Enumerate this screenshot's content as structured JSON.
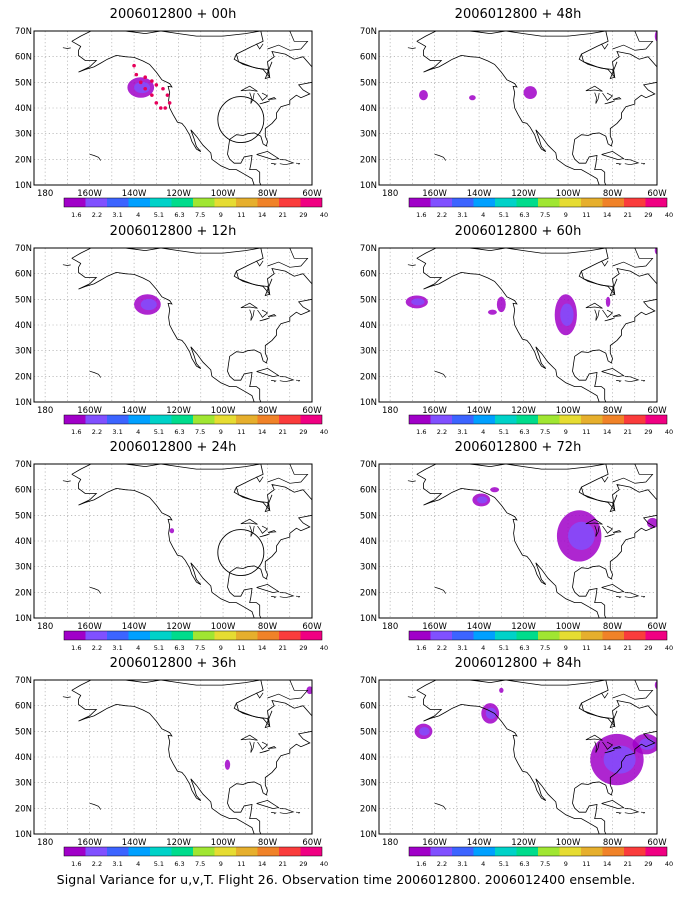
{
  "caption": "Signal Variance for u,v,T. Flight 26. Observation time 2006012800. 2006012400 ensemble.",
  "axes": {
    "lat_labels": [
      "70N",
      "60N",
      "50N",
      "40N",
      "30N",
      "20N",
      "10N"
    ],
    "lon_labels": [
      "180",
      "160W",
      "140W",
      "120W",
      "100W",
      "80W",
      "60W"
    ]
  },
  "colorbar": {
    "colors": [
      "#a000c8",
      "#8050ff",
      "#3c64ff",
      "#00a0ff",
      "#00d2c8",
      "#00dc8c",
      "#a0e632",
      "#e6dc32",
      "#e6af2d",
      "#f08228",
      "#fa3c3c",
      "#f00082"
    ],
    "labels": [
      "1.6",
      "2.2",
      "3.1",
      "4",
      "5.1",
      "6.3",
      "7.5",
      "9",
      "11",
      "14",
      "21",
      "29",
      "40"
    ]
  },
  "panels": [
    {
      "title": "2006012800 + 00h",
      "circle": true,
      "track": true,
      "blobs": [
        {
          "lon": -137,
          "lat": 48,
          "rx": 6,
          "ry": 4
        }
      ]
    },
    {
      "title": "2006012800 + 48h",
      "circle": false,
      "track": false,
      "blobs": [
        {
          "lon": -165,
          "lat": 45,
          "rx": 2,
          "ry": 2
        },
        {
          "lon": -143,
          "lat": 44,
          "rx": 1.5,
          "ry": 1
        },
        {
          "lon": -117,
          "lat": 46,
          "rx": 3,
          "ry": 2.5
        },
        {
          "lon": -60,
          "lat": 68,
          "rx": 1,
          "ry": 2
        }
      ]
    },
    {
      "title": "2006012800 + 12h",
      "circle": false,
      "track": false,
      "blobs": [
        {
          "lon": -134,
          "lat": 48,
          "rx": 6,
          "ry": 4
        }
      ]
    },
    {
      "title": "2006012800 + 60h",
      "circle": false,
      "track": false,
      "blobs": [
        {
          "lon": -168,
          "lat": 49,
          "rx": 5,
          "ry": 2.5
        },
        {
          "lon": -130,
          "lat": 48,
          "rx": 2,
          "ry": 3
        },
        {
          "lon": -134,
          "lat": 45,
          "rx": 2,
          "ry": 1
        },
        {
          "lon": -101,
          "lat": 44,
          "rx": 5,
          "ry": 8
        },
        {
          "lon": -82,
          "lat": 49,
          "rx": 1,
          "ry": 2
        },
        {
          "lon": -60,
          "lat": 69,
          "rx": 1,
          "ry": 1.5
        }
      ]
    },
    {
      "title": "2006012800 + 24h",
      "circle": true,
      "track": false,
      "blobs": [
        {
          "lon": -123,
          "lat": 44,
          "rx": 1,
          "ry": 1
        }
      ]
    },
    {
      "title": "2006012800 + 72h",
      "circle": false,
      "track": false,
      "blobs": [
        {
          "lon": -139,
          "lat": 56,
          "rx": 4,
          "ry": 2.5
        },
        {
          "lon": -133,
          "lat": 60,
          "rx": 2,
          "ry": 1
        },
        {
          "lon": -95,
          "lat": 42,
          "rx": 10,
          "ry": 10
        },
        {
          "lon": -62,
          "lat": 47,
          "rx": 2.5,
          "ry": 2
        }
      ]
    },
    {
      "title": "2006012800 + 36h",
      "circle": false,
      "track": false,
      "blobs": [
        {
          "lon": -98,
          "lat": 37,
          "rx": 1.2,
          "ry": 2
        },
        {
          "lon": -61,
          "lat": 66,
          "rx": 1.5,
          "ry": 1.5
        }
      ]
    },
    {
      "title": "2006012800 + 84h",
      "circle": false,
      "track": false,
      "blobs": [
        {
          "lon": -165,
          "lat": 50,
          "rx": 4,
          "ry": 3
        },
        {
          "lon": -135,
          "lat": 57,
          "rx": 4,
          "ry": 4
        },
        {
          "lon": -130,
          "lat": 66,
          "rx": 1,
          "ry": 1
        },
        {
          "lon": -78,
          "lat": 39,
          "rx": 12,
          "ry": 10
        },
        {
          "lon": -65,
          "lat": 45,
          "rx": 6,
          "ry": 4
        },
        {
          "lon": -60,
          "lat": 68,
          "rx": 1,
          "ry": 1.5
        }
      ]
    }
  ]
}
